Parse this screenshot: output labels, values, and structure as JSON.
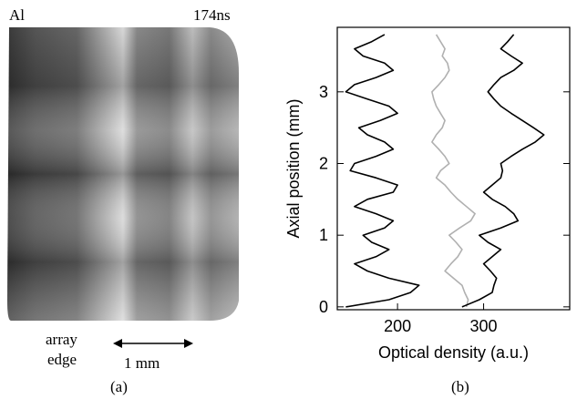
{
  "image_panel": {
    "material": "Al",
    "time": "174ns",
    "edge_line_1": "array",
    "edge_line_2": "edge",
    "scale_bar": "1 mm",
    "caption": "(a)"
  },
  "chart_data": {
    "type": "line",
    "caption": "(b)",
    "x_label": "Optical density (a.u.)",
    "y_label": "Axial position (mm)",
    "xlim": [
      130,
      400
    ],
    "xticks": [
      200,
      300
    ],
    "ylim": [
      -0.04,
      3.9
    ],
    "yticks": [
      0,
      1,
      2,
      3
    ],
    "y": [
      0,
      0.1,
      0.2,
      0.3,
      0.4,
      0.5,
      0.6,
      0.7,
      0.8,
      0.9,
      1.0,
      1.1,
      1.2,
      1.3,
      1.4,
      1.5,
      1.6,
      1.7,
      1.8,
      1.9,
      2.0,
      2.1,
      2.2,
      2.3,
      2.4,
      2.5,
      2.6,
      2.7,
      2.8,
      2.9,
      3.0,
      3.1,
      3.2,
      3.3,
      3.4,
      3.5,
      3.6,
      3.7,
      3.8
    ],
    "series": [
      {
        "color": "#000000",
        "values": [
          140,
          190,
          215,
          225,
          190,
          165,
          150,
          175,
          190,
          170,
          160,
          185,
          195,
          175,
          150,
          165,
          195,
          200,
          175,
          145,
          150,
          175,
          195,
          185,
          165,
          155,
          180,
          200,
          190,
          165,
          140,
          150,
          175,
          195,
          185,
          160,
          150,
          170,
          185
        ]
      },
      {
        "color": "#b0b0b0",
        "values": [
          280,
          282,
          278,
          275,
          265,
          255,
          262,
          270,
          275,
          268,
          260,
          272,
          285,
          290,
          280,
          270,
          262,
          255,
          245,
          250,
          260,
          255,
          248,
          240,
          245,
          252,
          255,
          250,
          245,
          242,
          240,
          248,
          255,
          260,
          258,
          252,
          255,
          250,
          245
        ]
      },
      {
        "color": "#000000",
        "values": [
          275,
          295,
          310,
          312,
          315,
          308,
          300,
          310,
          320,
          305,
          295,
          320,
          340,
          335,
          325,
          310,
          300,
          310,
          320,
          322,
          320,
          332,
          345,
          360,
          370,
          358,
          345,
          332,
          320,
          312,
          305,
          312,
          320,
          335,
          345,
          332,
          320,
          328,
          335
        ]
      }
    ]
  }
}
